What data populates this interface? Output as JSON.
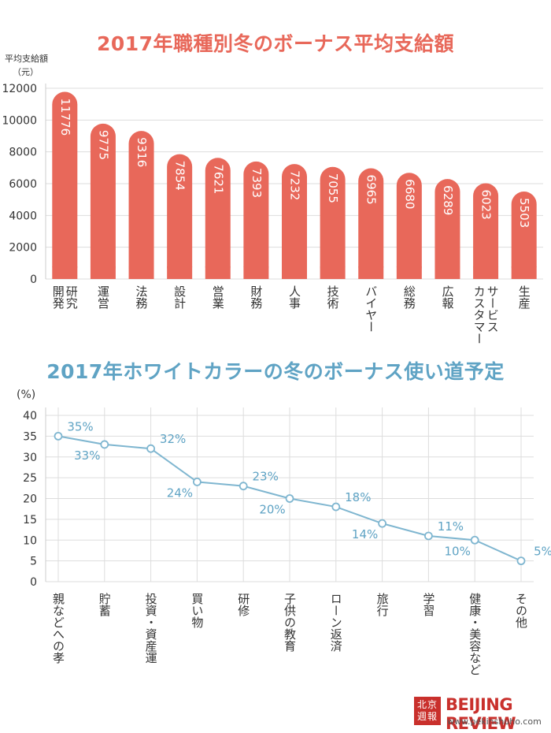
{
  "chart_data": [
    {
      "type": "bar",
      "title": "2017年職種別冬のボーナス平均支給額",
      "ylabel": "平均支給額",
      "yunit": "（元）",
      "ylim": [
        0,
        12000
      ],
      "yticks": [
        "0",
        "2000",
        "4000",
        "6000",
        "8000",
        "10000",
        "12000"
      ],
      "categories": [
        "研究開発",
        "運営",
        "法務",
        "設計",
        "営業",
        "財務",
        "人事",
        "技術",
        "バイヤー",
        "総務",
        "広報",
        "カスタマーサービス",
        "生産"
      ],
      "category_lines": [
        [
          "研究",
          "開発"
        ],
        [
          "運営"
        ],
        [
          "法務"
        ],
        [
          "設計"
        ],
        [
          "営業"
        ],
        [
          "財務"
        ],
        [
          "人事"
        ],
        [
          "技術"
        ],
        [
          "バイヤー"
        ],
        [
          "総務"
        ],
        [
          "広報"
        ],
        [
          "サービス",
          "カスタマー"
        ],
        [
          "生産"
        ]
      ],
      "values": [
        11776,
        9775,
        9316,
        7854,
        7621,
        7393,
        7232,
        7055,
        6965,
        6680,
        6289,
        6023,
        5503
      ],
      "bar_color": "#e8685a",
      "grid": true
    },
    {
      "type": "line",
      "title": "2017年ホワイトカラーの冬のボーナス使い道予定",
      "yunit": "(%)",
      "ylim": [
        0,
        40
      ],
      "yticks": [
        "0",
        "5",
        "10",
        "15",
        "20",
        "25",
        "30",
        "35",
        "40"
      ],
      "categories": [
        "親などへの孝",
        "貯蓄",
        "投資・資産運",
        "買い物",
        "研修",
        "子供の教育",
        "ローン返済",
        "旅行",
        "学習",
        "健康・美容など",
        "その他"
      ],
      "values": [
        35,
        33,
        32,
        24,
        23,
        20,
        18,
        14,
        11,
        10,
        5
      ],
      "labels": [
        "35%",
        "33%",
        "32%",
        "24%",
        "23%",
        "20%",
        "18%",
        "14%",
        "11%",
        "10%",
        "5%"
      ],
      "line_color": "#7fb6d0",
      "grid": true
    }
  ],
  "footer": {
    "seal_text": "北京週報",
    "brand": "BEIJING REVIEW",
    "url": "www.pekinshuho.com"
  }
}
